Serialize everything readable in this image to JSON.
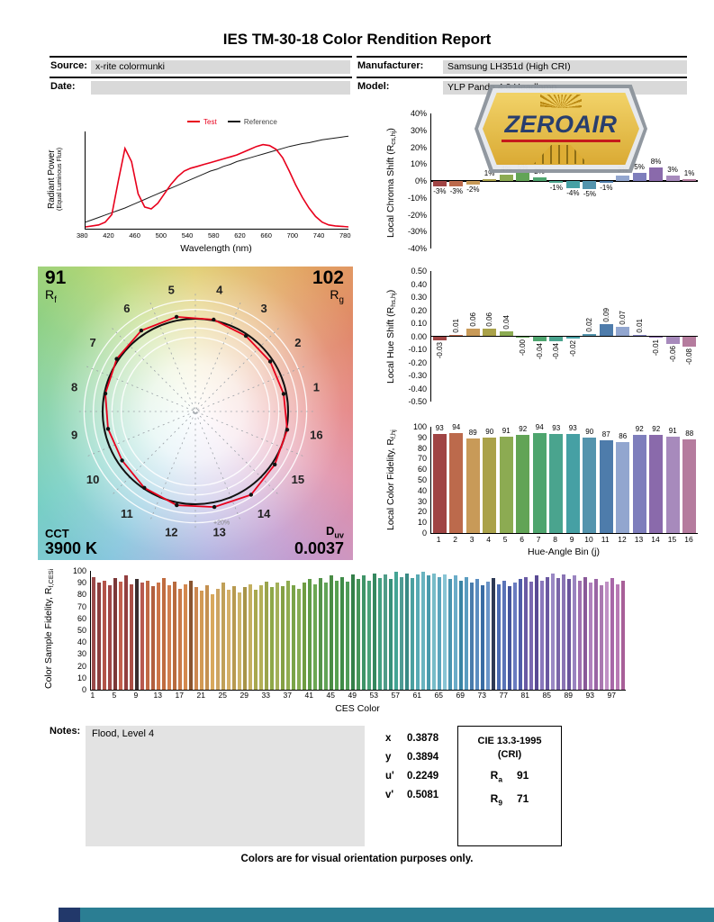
{
  "title": "IES TM-30-18 Color Rendition Report",
  "header": {
    "source_label": "Source:",
    "source_value": "x-rite colormunki",
    "date_label": "Date:",
    "date_value": "",
    "manufacturer_label": "Manufacturer:",
    "manufacturer_value": "Samsung LH351d (High CRI)",
    "model_label": "Model:",
    "model_value": "YLP Panda 4.0 Headlamp"
  },
  "logo": {
    "text": "ZEROAIR",
    "navy": "#22386a",
    "gold": "#d9a82e",
    "red": "#c41214",
    "gray": "#8e959d"
  },
  "spd": {
    "ylabel_line1": "Radiant Power",
    "ylabel_line2": "(Equal Luminous Flux)"
  },
  "charts": {
    "chroma": {
      "ylabel_pre": "Local Chroma Shift (R",
      "ylabel_sub": "cs,hj",
      "ylabel_post": ")"
    },
    "hue": {
      "ylabel_pre": "Local Hue Shift (R",
      "ylabel_sub": "hs,hj",
      "ylabel_post": ")"
    },
    "fid": {
      "ylabel_pre": "Local Color Fidelity, R",
      "ylabel_sub": "f,hj",
      "ylabel_post": ""
    },
    "ces": {
      "ylabel_pre": "Color Sample Fidelity, R",
      "ylabel_sub": "f,CESi",
      "ylabel_post": ""
    }
  },
  "cvg": {
    "rf_value": "91",
    "rf_main": "R",
    "rf_sub": "f",
    "rg_value": "102",
    "rg_main": "R",
    "rg_sub": "g",
    "cct_label": "CCT",
    "cct_value": "3900 K",
    "duv_main": "D",
    "duv_sub": "uv",
    "duv_value": "0.0037",
    "ring_label": "+20%",
    "bins": [
      1,
      2,
      3,
      4,
      5,
      6,
      7,
      8,
      9,
      10,
      11,
      12,
      13,
      14,
      15,
      16
    ]
  },
  "hue_bin_colors": [
    "#a04444",
    "#bc6a4c",
    "#c89a58",
    "#aaa24a",
    "#8cab52",
    "#62a456",
    "#4ea56e",
    "#4aa48e",
    "#46a0a4",
    "#5494ad",
    "#4e7cab",
    "#92a6cf",
    "#7e7ebc",
    "#8a6aab",
    "#a78abc",
    "#b57c9e"
  ],
  "chart_data": [
    {
      "type": "line",
      "name": "spectral_power_distribution",
      "xlabel": "Wavelength (nm)",
      "ylabel": "Radiant Power (Equal Luminous Flux)",
      "xlim": [
        380,
        780
      ],
      "xticks": [
        380,
        420,
        460,
        500,
        540,
        580,
        620,
        660,
        700,
        740,
        780
      ],
      "series": [
        {
          "name": "Test",
          "color": "#e8001c",
          "x": [
            380,
            390,
            400,
            410,
            420,
            430,
            440,
            450,
            460,
            470,
            480,
            490,
            500,
            510,
            520,
            530,
            540,
            550,
            560,
            570,
            580,
            590,
            600,
            610,
            620,
            630,
            640,
            650,
            660,
            670,
            680,
            690,
            700,
            710,
            720,
            730,
            740,
            750,
            760,
            770,
            780
          ],
          "y": [
            0.01,
            0.02,
            0.03,
            0.06,
            0.14,
            0.5,
            0.84,
            0.7,
            0.36,
            0.22,
            0.2,
            0.26,
            0.36,
            0.46,
            0.54,
            0.6,
            0.63,
            0.65,
            0.67,
            0.69,
            0.71,
            0.73,
            0.75,
            0.77,
            0.8,
            0.83,
            0.86,
            0.88,
            0.87,
            0.83,
            0.74,
            0.6,
            0.45,
            0.32,
            0.21,
            0.12,
            0.06,
            0.03,
            0.02,
            0.015,
            0.01
          ]
        },
        {
          "name": "Reference",
          "color": "#1a1a1a",
          "x": [
            380,
            390,
            400,
            410,
            420,
            430,
            440,
            450,
            460,
            470,
            480,
            490,
            500,
            510,
            520,
            530,
            540,
            550,
            560,
            570,
            580,
            590,
            600,
            610,
            620,
            630,
            640,
            650,
            660,
            670,
            680,
            690,
            700,
            710,
            720,
            730,
            740,
            750,
            760,
            770,
            780
          ],
          "y": [
            0.06,
            0.085,
            0.11,
            0.135,
            0.16,
            0.185,
            0.21,
            0.24,
            0.27,
            0.3,
            0.33,
            0.36,
            0.39,
            0.42,
            0.45,
            0.48,
            0.51,
            0.54,
            0.57,
            0.6,
            0.62,
            0.65,
            0.67,
            0.7,
            0.72,
            0.74,
            0.76,
            0.78,
            0.8,
            0.82,
            0.84,
            0.86,
            0.875,
            0.89,
            0.9,
            0.915,
            0.93,
            0.94,
            0.95,
            0.96,
            0.97
          ]
        }
      ]
    },
    {
      "type": "bar",
      "name": "local_chroma_shift",
      "ylabel": "Local Chroma Shift (Rcs,hj)",
      "ylim_pct": [
        -40,
        40
      ],
      "categories": [
        1,
        2,
        3,
        4,
        5,
        6,
        7,
        8,
        9,
        10,
        11,
        12,
        13,
        14,
        15,
        16
      ],
      "values_pct": [
        -3,
        -3,
        -2,
        1,
        4,
        5,
        2,
        -1,
        -4,
        -5,
        -1,
        3,
        5,
        8,
        3,
        1
      ],
      "labels": [
        "-3%",
        "-3%",
        "-2%",
        "1%",
        "4%",
        "5%",
        "2%",
        "-1%",
        "-4%",
        "-5%",
        "-1%",
        "3%",
        "5%",
        "8%",
        "3%",
        "1%"
      ]
    },
    {
      "type": "bar",
      "name": "local_hue_shift",
      "ylabel": "Local Hue Shift (Rhs,hj)",
      "ylim": [
        -0.5,
        0.5
      ],
      "categories": [
        1,
        2,
        3,
        4,
        5,
        6,
        7,
        8,
        9,
        10,
        11,
        12,
        13,
        14,
        15,
        16
      ],
      "values": [
        -0.03,
        0.01,
        0.06,
        0.06,
        0.04,
        0,
        -0.04,
        -0.04,
        -0.02,
        0.02,
        0.09,
        0.07,
        0.01,
        -0.01,
        -0.06,
        -0.08
      ],
      "labels": [
        "-0.03",
        "0.01",
        "0.06",
        "0.06",
        "0.04",
        "-0.00",
        "-0.04",
        "-0.04",
        "-0.02",
        "0.02",
        "0.09",
        "0.07",
        "0.01",
        "-0.01",
        "-0.06",
        "-0.08"
      ]
    },
    {
      "type": "bar",
      "name": "local_color_fidelity",
      "ylabel": "Local Color Fidelity, Rf,hj",
      "xlabel": "Hue-Angle Bin (j)",
      "ylim": [
        0,
        100
      ],
      "categories": [
        1,
        2,
        3,
        4,
        5,
        6,
        7,
        8,
        9,
        10,
        11,
        12,
        13,
        14,
        15,
        16
      ],
      "values": [
        93,
        94,
        89,
        90,
        91,
        92,
        94,
        93,
        93,
        90,
        87,
        86,
        92,
        92,
        91,
        88
      ]
    },
    {
      "type": "bar",
      "name": "color_sample_fidelity",
      "ylabel": "Color Sample Fidelity, Rf,CESi",
      "xlabel": "CES Color",
      "ylim": [
        0,
        100
      ],
      "xticks": [
        1,
        5,
        9,
        13,
        17,
        21,
        25,
        29,
        33,
        37,
        41,
        45,
        49,
        53,
        57,
        61,
        65,
        69,
        73,
        77,
        81,
        85,
        89,
        93,
        97
      ],
      "values": [
        95,
        90,
        92,
        88,
        94,
        91,
        96,
        89,
        93,
        90,
        92,
        87,
        90,
        94,
        88,
        91,
        85,
        89,
        92,
        86,
        83,
        88,
        80,
        85,
        90,
        84,
        87,
        82,
        86,
        89,
        84,
        88,
        91,
        86,
        90,
        87,
        92,
        88,
        85,
        90,
        93,
        89,
        94,
        90,
        96,
        92,
        95,
        91,
        97,
        93,
        96,
        92,
        98,
        94,
        97,
        93,
        99,
        95,
        98,
        94,
        97,
        99,
        96,
        98,
        95,
        97,
        93,
        96,
        92,
        95,
        90,
        93,
        88,
        91,
        94,
        89,
        92,
        87,
        90,
        93,
        95,
        91,
        96,
        92,
        95,
        98,
        94,
        97,
        93,
        96,
        92,
        95,
        90,
        93,
        88,
        91,
        94,
        89,
        92
      ],
      "colors": [
        "#9b4a4a",
        "#8a3e3e",
        "#b35449",
        "#a04848",
        "#7c3838",
        "#c2604e",
        "#933f3f",
        "#ab5046",
        "#3a2e2e",
        "#b85a50",
        "#c06a45",
        "#b25f3f",
        "#cc7448",
        "#c06c40",
        "#d07e4e",
        "#b86a3e",
        "#c87a4a",
        "#d4884e",
        "#8a5530",
        "#cc8850",
        "#d29a55",
        "#c49050",
        "#d8a85c",
        "#cca462",
        "#c0a058",
        "#d4b068",
        "#b89a50",
        "#ccb468",
        "#a89448",
        "#c4b060",
        "#a8a84e",
        "#b4b058",
        "#9aa44c",
        "#8ea848",
        "#a4b058",
        "#84a044",
        "#90ac50",
        "#7aa448",
        "#86ac54",
        "#6f9c42",
        "#5f9c48",
        "#6ca854",
        "#54944a",
        "#62a457",
        "#4a8c44",
        "#58a050",
        "#3f8c48",
        "#4f9c58",
        "#35804a",
        "#48945a",
        "#3f9468",
        "#4aa078",
        "#35885f",
        "#44a082",
        "#4f9c88",
        "#38907a",
        "#44a494",
        "#509c94",
        "#388a84",
        "#4aa0a0",
        "#58aab4",
        "#6ab4c0",
        "#4a9aac",
        "#78bcc8",
        "#5aa4bc",
        "#88c4d4",
        "#4a94b0",
        "#6aacc8",
        "#3a84a4",
        "#5a9cc0",
        "#4a7cac",
        "#5a8cc0",
        "#3a6ca4",
        "#6a94c8",
        "#2e3a55",
        "#4a6ab0",
        "#5a74b8",
        "#44549c",
        "#6a7cc0",
        "#505ca8",
        "#6a5aa4",
        "#7a68b0",
        "#5a4a94",
        "#8a78bc",
        "#6a58a0",
        "#9a88c4",
        "#7a64a8",
        "#8a74b4",
        "#6a549c",
        "#9a84c0",
        "#a070b0",
        "#8a5898",
        "#b080bc",
        "#9a64a4",
        "#aa78b0",
        "#c090c4",
        "#a868a8",
        "#b87ab4",
        "#a86098"
      ]
    }
  ],
  "notes": {
    "label": "Notes:",
    "value": "Flood, Level 4"
  },
  "chromaticity": {
    "rows": [
      {
        "label": "x",
        "value": "0.3878"
      },
      {
        "label": "y",
        "value": "0.3894"
      },
      {
        "label": "u'",
        "value": "0.2249"
      },
      {
        "label": "v'",
        "value": "0.5081"
      }
    ]
  },
  "cie": {
    "title": "CIE 13.3-1995",
    "subtitle": "(CRI)",
    "rows": [
      {
        "main": "R",
        "sub": "a",
        "value": "91"
      },
      {
        "main": "R",
        "sub": "9",
        "value": "71"
      }
    ]
  },
  "footer": "Colors are for visual orientation purposes only.",
  "strip_colors": {
    "navy": "#22386a",
    "teal": "#2b7e93"
  }
}
